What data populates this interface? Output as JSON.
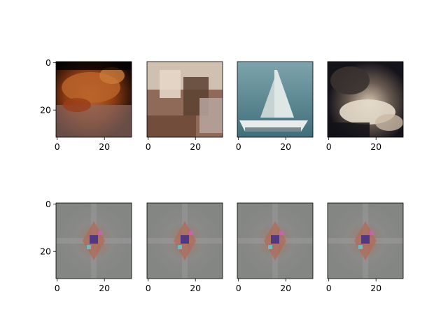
{
  "chart_data": {
    "type": "image_grid",
    "rows": 2,
    "cols": 4,
    "subplots": [
      {
        "row": 0,
        "col": 0,
        "content": "frog",
        "xticks": [
          "0",
          "20"
        ],
        "yticks": [
          "0",
          "20"
        ],
        "xlim": [
          -0.5,
          31.5
        ],
        "ylim": [
          31.5,
          -0.5
        ]
      },
      {
        "row": 0,
        "col": 1,
        "content": "blurry indoor scene",
        "xticks": [
          "0",
          "20"
        ],
        "yticks": [],
        "xlim": [
          -0.5,
          31.5
        ],
        "ylim": [
          31.5,
          -0.5
        ]
      },
      {
        "row": 0,
        "col": 2,
        "content": "sailboat",
        "xticks": [
          "0",
          "20"
        ],
        "yticks": [],
        "xlim": [
          -0.5,
          31.5
        ],
        "ylim": [
          31.5,
          -0.5
        ]
      },
      {
        "row": 0,
        "col": 3,
        "content": "cat",
        "xticks": [
          "0",
          "20"
        ],
        "yticks": [],
        "xlim": [
          -0.5,
          31.5
        ],
        "ylim": [
          31.5,
          -0.5
        ]
      },
      {
        "row": 1,
        "col": 0,
        "content": "gray noise pattern",
        "xticks": [
          "0",
          "20"
        ],
        "yticks": [
          "0",
          "20"
        ],
        "xlim": [
          -0.5,
          31.5
        ],
        "ylim": [
          31.5,
          -0.5
        ]
      },
      {
        "row": 1,
        "col": 1,
        "content": "gray noise pattern",
        "xticks": [
          "0",
          "20"
        ],
        "yticks": [],
        "xlim": [
          -0.5,
          31.5
        ],
        "ylim": [
          31.5,
          -0.5
        ]
      },
      {
        "row": 1,
        "col": 2,
        "content": "gray noise pattern",
        "xticks": [
          "0",
          "20"
        ],
        "yticks": [],
        "xlim": [
          -0.5,
          31.5
        ],
        "ylim": [
          31.5,
          -0.5
        ]
      },
      {
        "row": 1,
        "col": 3,
        "content": "gray noise pattern",
        "xticks": [
          "0",
          "20"
        ],
        "yticks": [],
        "xlim": [
          -0.5,
          31.5
        ],
        "ylim": [
          31.5,
          -0.5
        ]
      }
    ]
  }
}
